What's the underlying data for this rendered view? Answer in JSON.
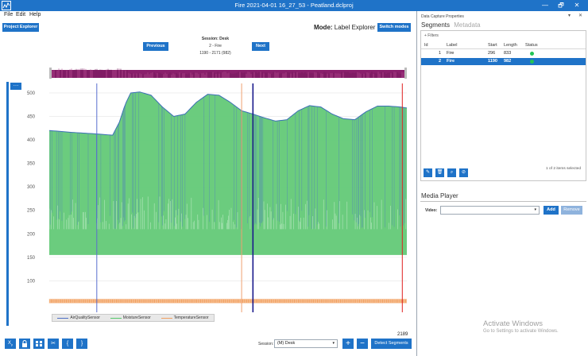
{
  "window": {
    "title": "Fire 2021-04-01 16_27_53 - Peatland.dclproj",
    "controls": [
      "—",
      "🗗",
      "✕"
    ]
  },
  "menu": [
    "File",
    "Edit",
    "Help"
  ],
  "toolbar": {
    "project_explorer": "Project Explorer",
    "mode_label": "Mode:",
    "mode_value": "Label Explorer",
    "switch_modes": "Switch modes"
  },
  "session_nav": {
    "previous": "Previous",
    "next": "Next",
    "session": "Session: Desk",
    "segment": "2 - Fire",
    "range": "1190 - 2171 (982)"
  },
  "chart_data": {
    "type": "line",
    "ylim": [
      50,
      510
    ],
    "yticks": [
      100,
      150,
      200,
      250,
      300,
      350,
      400,
      450,
      500
    ],
    "grid": true,
    "legend_placement": "bottom-left",
    "series": [
      {
        "name": "AirQualitySensor",
        "color": "#4d6fc4"
      },
      {
        "name": "MoistureSensor",
        "color": "#55c86a"
      },
      {
        "name": "TemperatureSensor",
        "color": "#f0a060"
      }
    ],
    "moisture_top": [
      [
        0,
        420
      ],
      [
        100,
        416
      ],
      [
        200,
        413
      ],
      [
        280,
        410
      ],
      [
        310,
        438
      ],
      [
        335,
        475
      ],
      [
        360,
        500
      ],
      [
        400,
        502
      ],
      [
        450,
        495
      ],
      [
        500,
        470
      ],
      [
        550,
        450
      ],
      [
        600,
        455
      ],
      [
        650,
        480
      ],
      [
        700,
        497
      ],
      [
        750,
        495
      ],
      [
        800,
        480
      ],
      [
        850,
        462
      ],
      [
        900,
        455
      ],
      [
        950,
        447
      ],
      [
        1000,
        440
      ],
      [
        1050,
        443
      ],
      [
        1100,
        462
      ],
      [
        1150,
        473
      ],
      [
        1200,
        470
      ],
      [
        1250,
        455
      ],
      [
        1300,
        445
      ],
      [
        1350,
        443
      ],
      [
        1400,
        460
      ],
      [
        1450,
        472
      ],
      [
        1500,
        472
      ],
      [
        1550,
        470
      ],
      [
        1580,
        468
      ]
    ],
    "moisture_band": [
      155,
      210
    ],
    "temperature_level": 57,
    "marker_lines": [
      {
        "x": 210,
        "color": "#5a6fd0"
      },
      {
        "x": 850,
        "color": "#f0a070"
      },
      {
        "x": 900,
        "color": "#1a1a8c"
      },
      {
        "x": 1560,
        "color": "#e02020"
      }
    ]
  },
  "legend": [
    "AirQualitySensor",
    "MoistureSensor",
    "TemperatureSensor"
  ],
  "bottom": {
    "count": "2189",
    "session_label": "Session:",
    "session_value": "(M) Desk",
    "detect": "Detect Segments",
    "plus": "+",
    "minus": "−"
  },
  "right_panel": {
    "title": "Data Capture Properties",
    "tab_segments": "Segments",
    "tab_metadata": "Metadata",
    "filters": "+ Filters",
    "columns": [
      "Id",
      "Label",
      "Start",
      "Length",
      "Status"
    ],
    "rows": [
      {
        "id": "1",
        "label": "Fire",
        "start": "296",
        "length": "833",
        "selected": false
      },
      {
        "id": "2",
        "label": "Fire",
        "start": "1190",
        "length": "982",
        "selected": true
      }
    ],
    "selected_text": "1 of 2 items selected",
    "media_player": "Media Player",
    "video_label": "Video:",
    "add": "Add",
    "remove": "Remove"
  },
  "watermark": {
    "line1": "Activate Windows",
    "line2": "Go to Settings to activate Windows."
  }
}
